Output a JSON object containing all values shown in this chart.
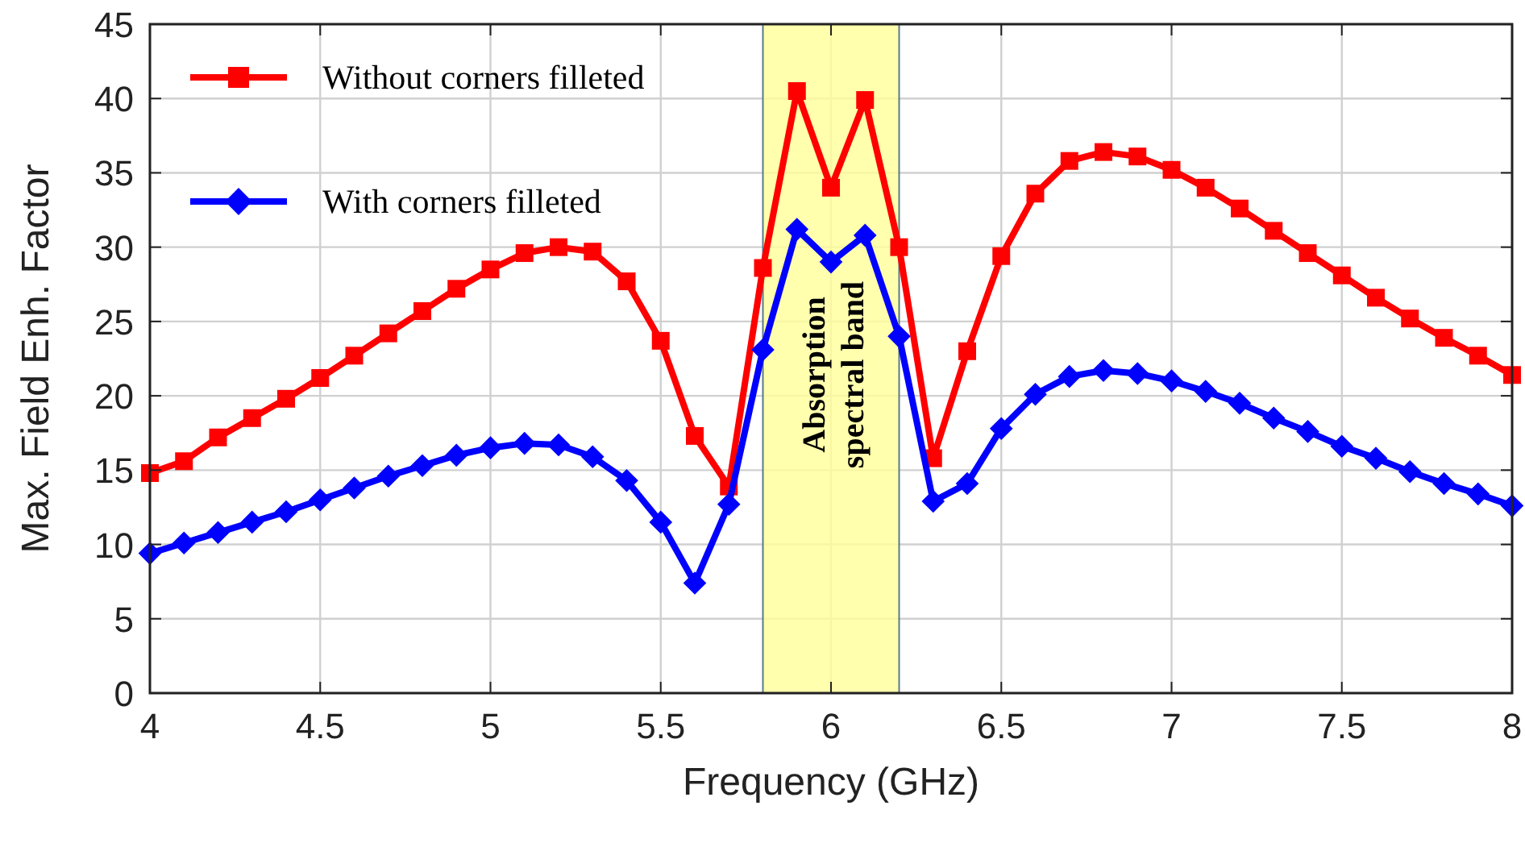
{
  "chart_data": {
    "type": "line",
    "xlabel": "Frequency (GHz)",
    "ylabel": "Max. Field Enh. Factor",
    "x": [
      4.0,
      4.1,
      4.2,
      4.3,
      4.4,
      4.5,
      4.6,
      4.7,
      4.8,
      4.9,
      5.0,
      5.1,
      5.2,
      5.3,
      5.4,
      5.5,
      5.6,
      5.7,
      5.8,
      5.9,
      6.0,
      6.1,
      6.2,
      6.3,
      6.4,
      6.5,
      6.6,
      6.7,
      6.8,
      6.9,
      7.0,
      7.1,
      7.2,
      7.3,
      7.4,
      7.5,
      7.6,
      7.7,
      7.8,
      7.9,
      8.0
    ],
    "series": [
      {
        "name": "Without corners filleted",
        "color": "#ff0000",
        "marker": "square",
        "values": [
          14.8,
          15.6,
          17.2,
          18.5,
          19.8,
          21.2,
          22.7,
          24.2,
          25.7,
          27.2,
          28.5,
          29.6,
          30.0,
          29.7,
          27.7,
          23.7,
          17.3,
          13.9,
          28.6,
          40.5,
          34.0,
          39.9,
          30.0,
          15.8,
          23.0,
          29.4,
          33.6,
          35.8,
          36.4,
          36.1,
          35.2,
          34.0,
          32.6,
          31.1,
          29.6,
          28.1,
          26.6,
          25.2,
          23.9,
          22.7,
          21.4
        ]
      },
      {
        "name": "With corners filleted",
        "color": "#0000ff",
        "marker": "diamond",
        "values": [
          9.4,
          10.1,
          10.8,
          11.5,
          12.2,
          13.0,
          13.8,
          14.6,
          15.3,
          16.0,
          16.5,
          16.8,
          16.7,
          15.9,
          14.3,
          11.5,
          7.4,
          12.7,
          23.1,
          31.2,
          29.0,
          30.8,
          24.0,
          12.9,
          14.1,
          17.8,
          20.1,
          21.3,
          21.7,
          21.5,
          21.0,
          20.3,
          19.5,
          18.5,
          17.6,
          16.6,
          15.8,
          14.9,
          14.1,
          13.4,
          12.6
        ]
      }
    ],
    "bands": [
      {
        "axis": "x",
        "from": 5.8,
        "to": 6.2,
        "label": "Absorption spectral band",
        "color": "#ffff99"
      }
    ],
    "xlim": [
      4,
      8
    ],
    "xticks": [
      4,
      4.5,
      5,
      5.5,
      6,
      6.5,
      7,
      7.5,
      8
    ],
    "ylim": [
      0,
      45
    ],
    "yticks": [
      0,
      5,
      10,
      15,
      20,
      25,
      30,
      35,
      40,
      45
    ],
    "grid": true,
    "legend": "top left",
    "line_style": "solid"
  }
}
